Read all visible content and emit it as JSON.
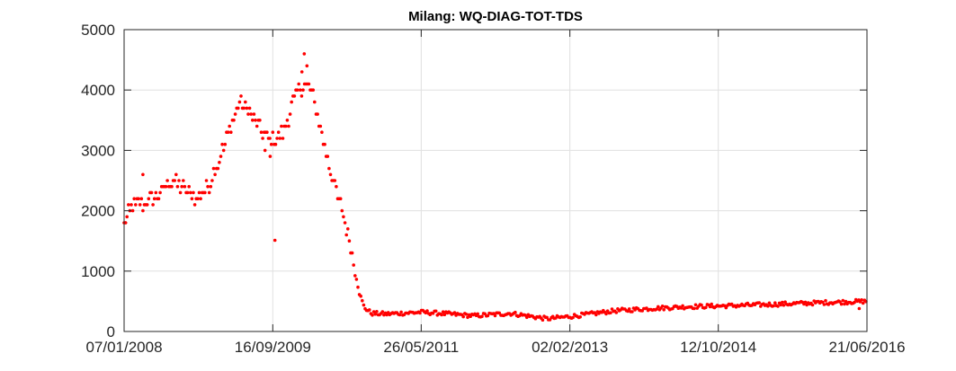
{
  "chart_data": {
    "type": "scatter",
    "title": "Milang: WQ-DIAG-TOT-TDS",
    "xlabel": "",
    "ylabel": "",
    "ylim": [
      0,
      5000
    ],
    "xlim": [
      "07/01/2008",
      "21/06/2016"
    ],
    "grid": true,
    "legend": "none",
    "marker_color": "#ff0000",
    "x_ticks": [
      "07/01/2008",
      "16/09/2009",
      "26/05/2011",
      "02/02/2013",
      "12/10/2014",
      "21/06/2016"
    ],
    "y_ticks": [
      0,
      1000,
      2000,
      3000,
      4000,
      5000
    ],
    "x_ticks_iso": [
      "2008-01-07",
      "2009-09-16",
      "2011-05-26",
      "2013-02-02",
      "2014-10-12",
      "2016-06-21"
    ],
    "anchors": [
      [
        "2008-01-07",
        1800
      ],
      [
        "2008-02-01",
        2000
      ],
      [
        "2008-03-01",
        2100
      ],
      [
        "2008-04-01",
        2100
      ],
      [
        "2008-05-01",
        2200
      ],
      [
        "2008-06-01",
        2300
      ],
      [
        "2008-07-01",
        2400
      ],
      [
        "2008-08-01",
        2500
      ],
      [
        "2008-09-01",
        2400
      ],
      [
        "2008-10-01",
        2300
      ],
      [
        "2008-11-01",
        2200
      ],
      [
        "2008-12-01",
        2300
      ],
      [
        "2009-01-01",
        2500
      ],
      [
        "2009-02-01",
        2800
      ],
      [
        "2009-03-01",
        3100
      ],
      [
        "2009-04-01",
        3500
      ],
      [
        "2009-05-01",
        3800
      ],
      [
        "2009-06-01",
        3700
      ],
      [
        "2009-07-01",
        3500
      ],
      [
        "2009-08-01",
        3300
      ],
      [
        "2009-09-01",
        3200
      ],
      [
        "2009-10-01",
        3200
      ],
      [
        "2009-11-01",
        3300
      ],
      [
        "2009-12-01",
        3700
      ],
      [
        "2010-01-01",
        4000
      ],
      [
        "2010-02-01",
        4100
      ],
      [
        "2010-03-01",
        3900
      ],
      [
        "2010-04-01",
        3400
      ],
      [
        "2010-05-01",
        2900
      ],
      [
        "2010-06-01",
        2400
      ],
      [
        "2010-07-01",
        2000
      ],
      [
        "2010-08-01",
        1500
      ],
      [
        "2010-08-25",
        1000
      ],
      [
        "2010-09-10",
        650
      ],
      [
        "2010-10-01",
        400
      ],
      [
        "2010-11-01",
        300
      ],
      [
        "2011-01-01",
        290
      ],
      [
        "2011-06-01",
        320
      ],
      [
        "2012-01-01",
        260
      ],
      [
        "2012-06-01",
        300
      ],
      [
        "2012-11-01",
        210
      ],
      [
        "2013-03-01",
        260
      ],
      [
        "2013-08-01",
        340
      ],
      [
        "2014-01-01",
        380
      ],
      [
        "2014-06-01",
        410
      ],
      [
        "2015-01-01",
        430
      ],
      [
        "2015-06-01",
        450
      ],
      [
        "2016-01-01",
        480
      ],
      [
        "2016-06-21",
        500
      ]
    ],
    "outliers": [
      [
        "2008-01-13",
        1800
      ],
      [
        "2008-03-25",
        2600
      ],
      [
        "2009-08-15",
        3000
      ],
      [
        "2009-09-05",
        2900
      ],
      [
        "2009-09-25",
        1510
      ],
      [
        "2010-01-25",
        4600
      ],
      [
        "2010-02-05",
        4400
      ],
      [
        "2010-01-15",
        4300
      ],
      [
        "2016-05-20",
        380
      ]
    ]
  }
}
